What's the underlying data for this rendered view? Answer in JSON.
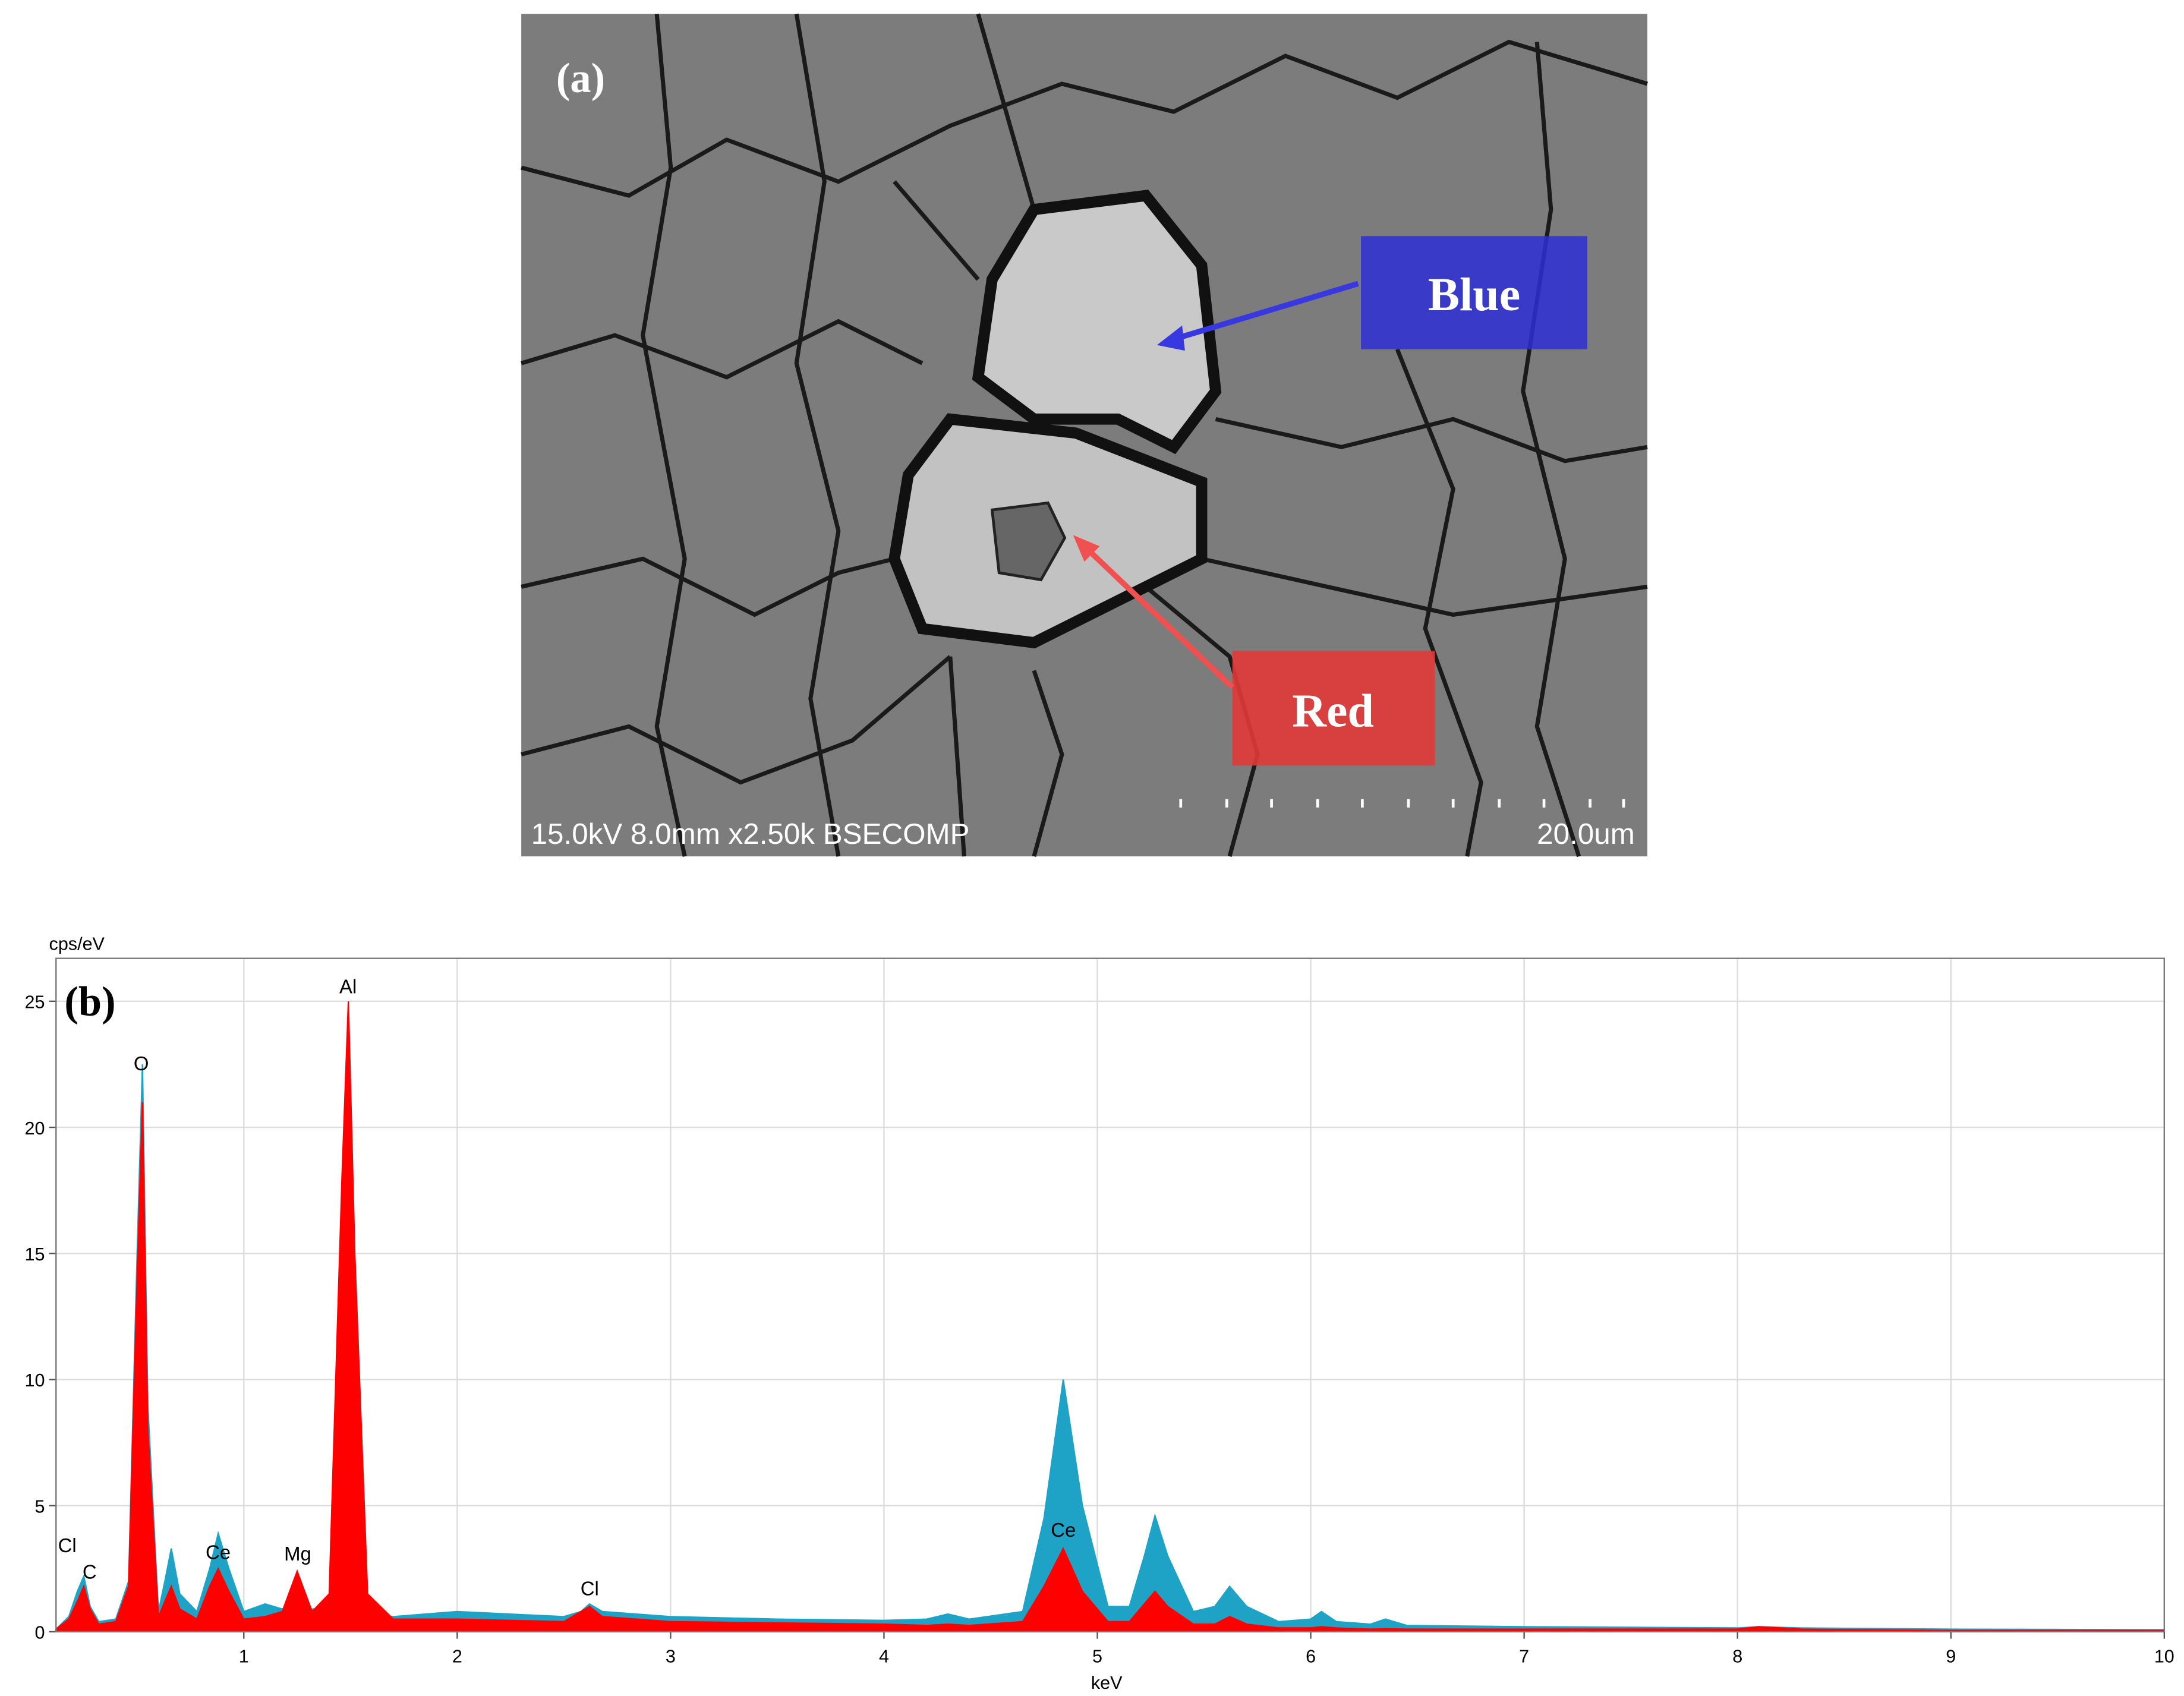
{
  "image": {
    "label": "(a)",
    "annotations": [
      "Blue",
      "Red"
    ],
    "caption_left": "15.0kV 8.0mm x2.50k BSECOMP",
    "caption_right": "20.0um"
  },
  "chart_data": {
    "type": "area",
    "label": "(b)",
    "y_label": "cps/eV",
    "x_label": "keV",
    "x": [
      0.12,
      0.18,
      0.22,
      0.25,
      0.28,
      0.32,
      0.4,
      0.46,
      0.5,
      0.525,
      0.55,
      0.6,
      0.63,
      0.66,
      0.7,
      0.78,
      0.84,
      0.88,
      0.93,
      1.0,
      1.1,
      1.18,
      1.25,
      1.32,
      1.4,
      1.46,
      1.49,
      1.52,
      1.58,
      1.7,
      2.0,
      2.5,
      2.58,
      2.62,
      2.68,
      3.0,
      3.5,
      4.0,
      4.2,
      4.3,
      4.4,
      4.65,
      4.75,
      4.84,
      4.93,
      5.05,
      5.15,
      5.22,
      5.27,
      5.33,
      5.45,
      5.55,
      5.62,
      5.7,
      5.85,
      6.0,
      6.05,
      6.12,
      6.28,
      6.35,
      6.45,
      7.0,
      8.0,
      8.1,
      8.3,
      9.0,
      10.0
    ],
    "series": [
      {
        "name": "Blue",
        "color": "#1ea3c6",
        "values": [
          0.1,
          0.6,
          1.6,
          2.2,
          1.0,
          0.4,
          0.5,
          2.0,
          15,
          22.5,
          9,
          0.8,
          2.0,
          3.3,
          1.5,
          0.8,
          2.5,
          3.9,
          2.5,
          0.8,
          1.1,
          0.9,
          1.2,
          0.9,
          0.9,
          1.2,
          1.3,
          1.1,
          0.7,
          0.6,
          0.8,
          0.6,
          0.8,
          1.1,
          0.8,
          0.6,
          0.5,
          0.45,
          0.5,
          0.7,
          0.5,
          0.8,
          4.5,
          10,
          5,
          1.0,
          1.0,
          3.0,
          4.6,
          3.0,
          0.8,
          1.0,
          1.8,
          1.0,
          0.4,
          0.5,
          0.8,
          0.4,
          0.3,
          0.5,
          0.25,
          0.2,
          0.15,
          0.2,
          0.15,
          0.1,
          0.08
        ]
      },
      {
        "name": "Red",
        "color": "#ff0000",
        "values": [
          0.1,
          0.5,
          1.2,
          1.8,
          0.9,
          0.3,
          0.4,
          1.8,
          14,
          21,
          8,
          0.6,
          1.2,
          1.8,
          0.9,
          0.5,
          1.8,
          2.5,
          1.6,
          0.5,
          0.6,
          0.8,
          2.4,
          0.8,
          1.5,
          18,
          25,
          15,
          1.5,
          0.5,
          0.5,
          0.4,
          0.8,
          1.0,
          0.6,
          0.4,
          0.35,
          0.3,
          0.25,
          0.3,
          0.25,
          0.4,
          1.8,
          3.3,
          1.6,
          0.4,
          0.4,
          1.1,
          1.6,
          1.0,
          0.3,
          0.3,
          0.6,
          0.3,
          0.15,
          0.15,
          0.2,
          0.15,
          0.1,
          0.12,
          0.1,
          0.1,
          0.1,
          0.2,
          0.1,
          0.05,
          0.05
        ]
      }
    ],
    "peak_labels": [
      "Cl",
      "C",
      "O",
      "Ce",
      "Mg",
      "Al",
      "Cl",
      "Ce"
    ],
    "xlim": [
      0.12,
      10
    ],
    "ylim": [
      0,
      26.7
    ],
    "xticks": [
      1,
      2,
      3,
      4,
      5,
      6,
      7,
      8,
      9,
      10
    ],
    "yticks": [
      0,
      5,
      10,
      15,
      20,
      25
    ],
    "grid": true
  }
}
